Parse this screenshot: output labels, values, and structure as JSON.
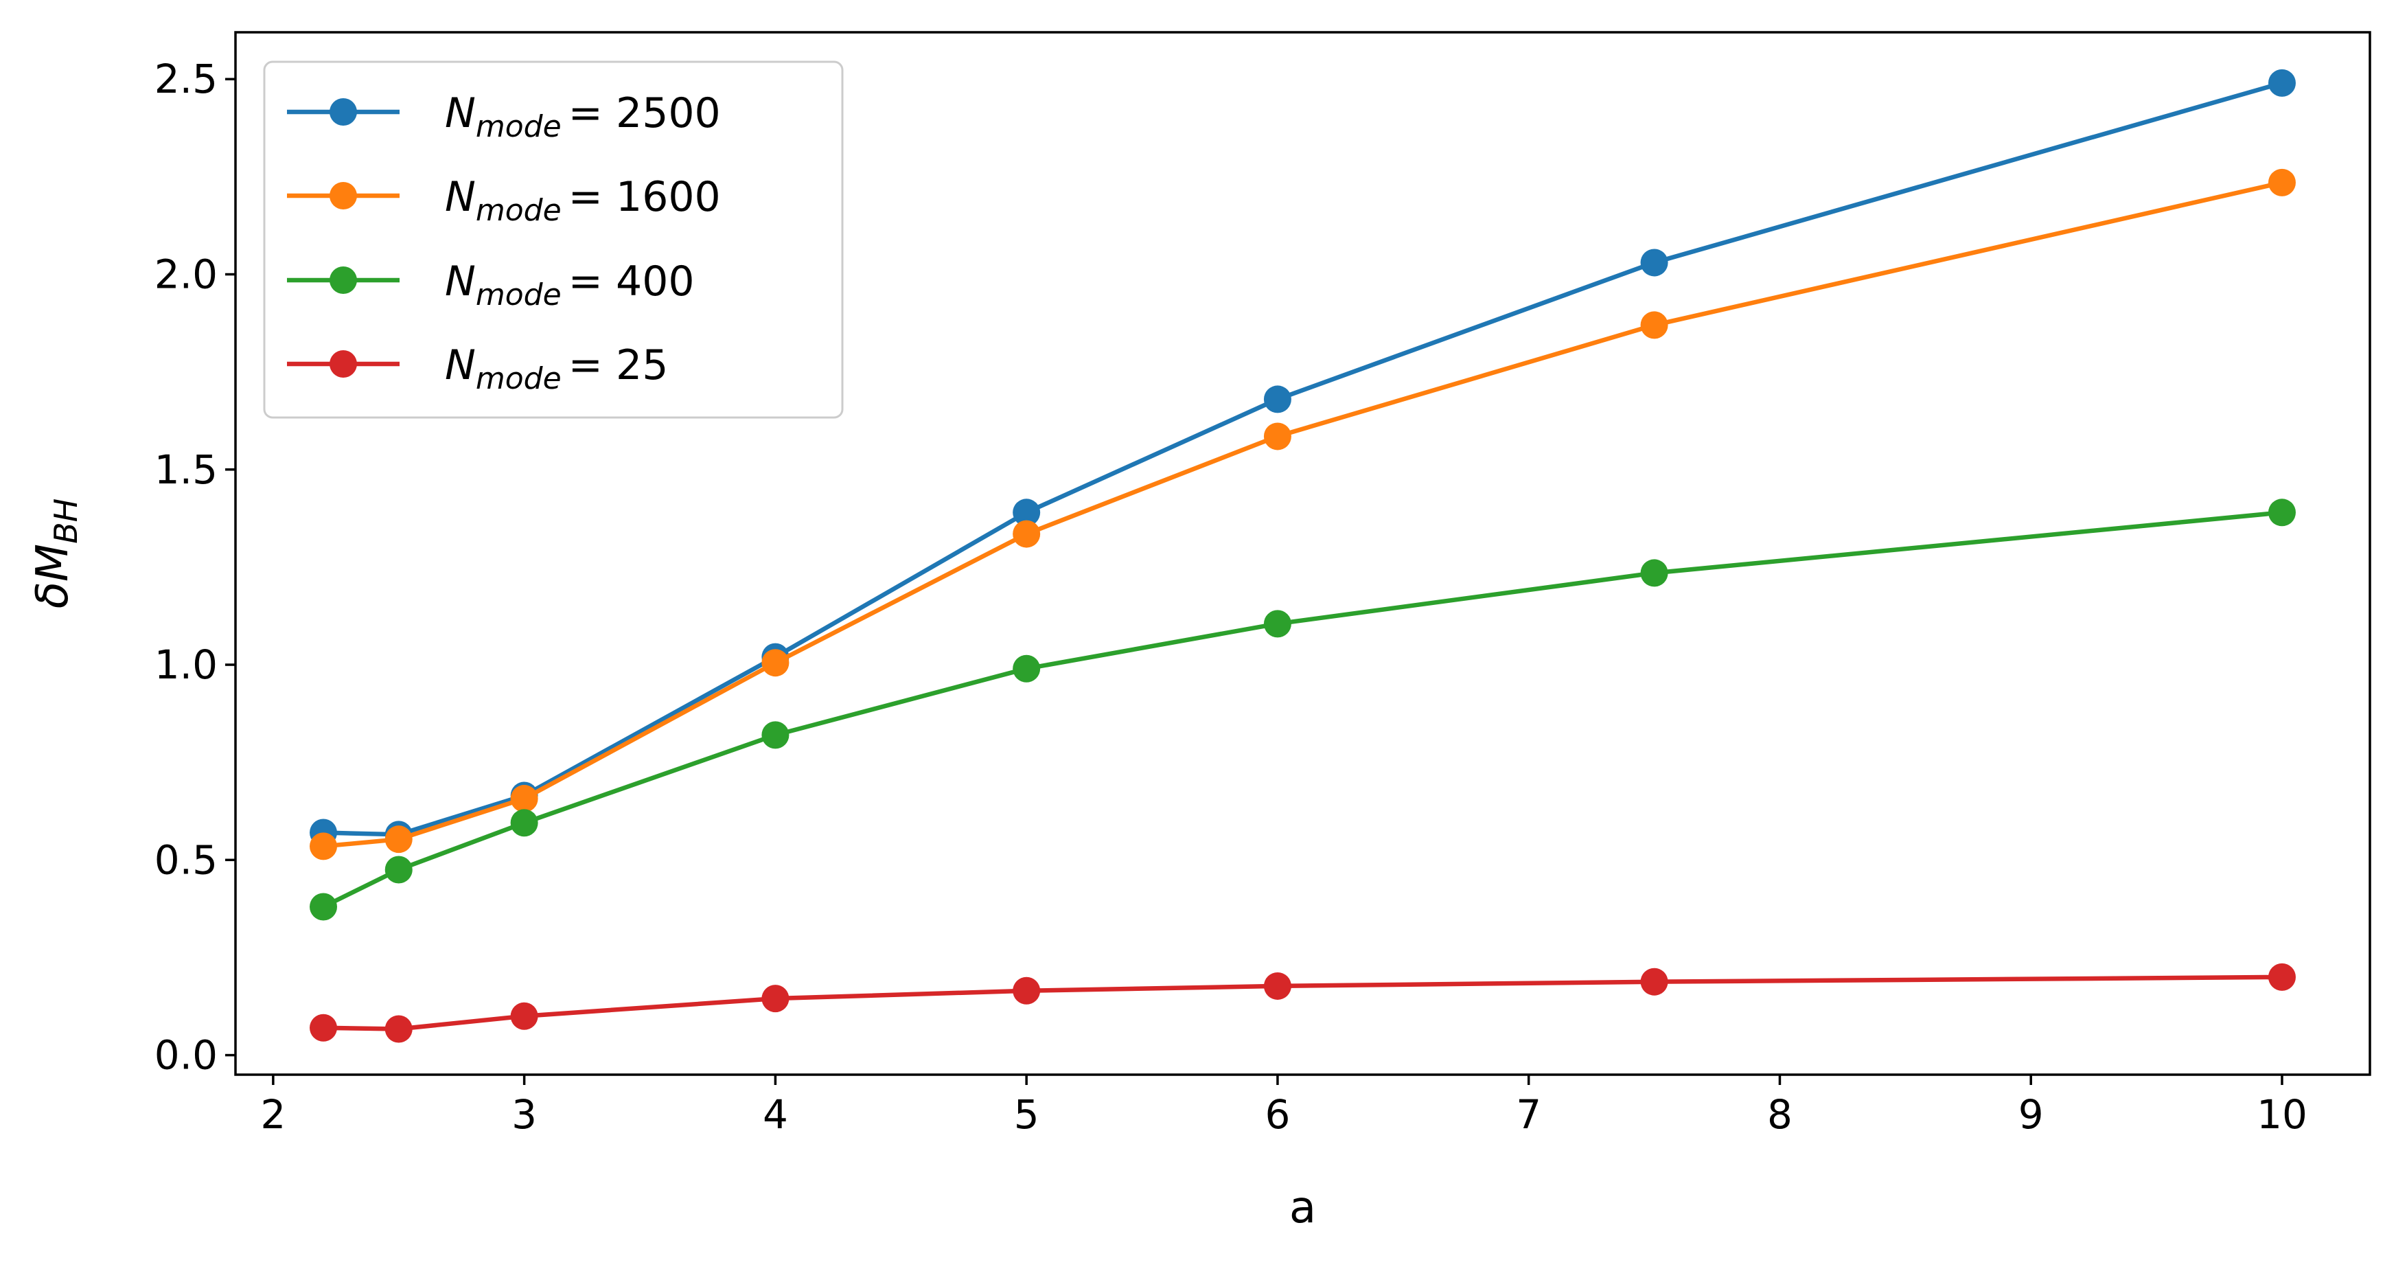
{
  "chart_data": {
    "type": "line",
    "title": "",
    "xlabel": "a",
    "ylabel": {
      "base": "δM",
      "sub": "BH"
    },
    "xlim": [
      1.85,
      10.35
    ],
    "ylim": [
      -0.05,
      2.62
    ],
    "xticks": [
      2,
      3,
      4,
      5,
      6,
      7,
      8,
      9,
      10
    ],
    "yticks": [
      0.0,
      0.5,
      1.0,
      1.5,
      2.0,
      2.5
    ],
    "ytick_labels": [
      "0.0",
      "0.5",
      "1.0",
      "1.5",
      "2.0",
      "2.5"
    ],
    "grid": false,
    "legend_position": "top-left",
    "x": [
      2.2,
      2.5,
      3,
      4,
      5,
      6,
      7.5,
      10
    ],
    "series": [
      {
        "label_base": "N",
        "label_sub": "mode",
        "label_value": "= 2500",
        "color": "#1f77b4",
        "values": [
          0.57,
          0.565,
          0.665,
          1.02,
          1.39,
          1.68,
          2.03,
          2.49
        ]
      },
      {
        "label_base": "N",
        "label_sub": "mode",
        "label_value": "= 1600",
        "color": "#ff7f0e",
        "values": [
          0.535,
          0.553,
          0.657,
          1.005,
          1.335,
          1.585,
          1.87,
          2.235
        ]
      },
      {
        "label_base": "N",
        "label_sub": "mode",
        "label_value": "= 400",
        "color": "#2ca02c",
        "values": [
          0.38,
          0.475,
          0.595,
          0.82,
          0.99,
          1.105,
          1.235,
          1.39
        ]
      },
      {
        "label_base": "N",
        "label_sub": "mode",
        "label_value": "= 25",
        "color": "#d62728",
        "values": [
          0.07,
          0.067,
          0.1,
          0.145,
          0.165,
          0.177,
          0.188,
          0.2
        ]
      }
    ]
  }
}
